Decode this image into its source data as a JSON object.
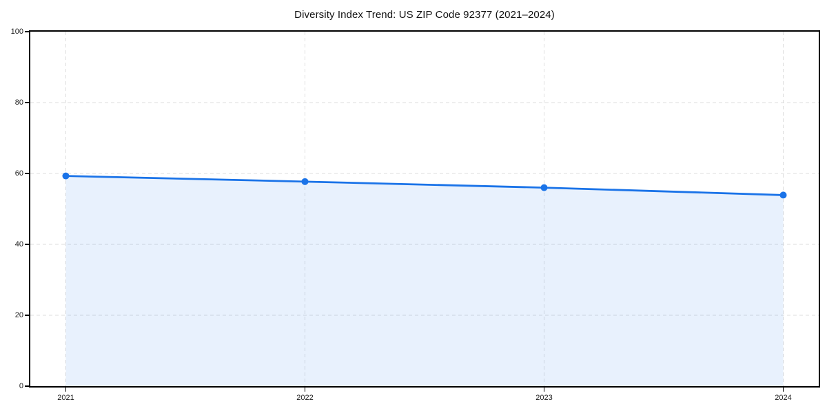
{
  "chart_data": {
    "type": "line",
    "title": "Diversity Index Trend: US ZIP Code 92377 (2021–2024)",
    "categories": [
      "2021",
      "2022",
      "2023",
      "2024"
    ],
    "series": [
      {
        "name": "Diversity Index",
        "values": [
          59.3,
          57.7,
          56.0,
          53.9
        ]
      }
    ],
    "xlabel": "",
    "ylabel": "",
    "ylim": [
      0,
      100
    ],
    "yticks": [
      0,
      20,
      40,
      60,
      80,
      100
    ],
    "grid": "dashed",
    "legend": "none",
    "area_fill": true,
    "x_pad_frac": 0.045,
    "colors": {
      "line": "#1a73e8",
      "marker": "#1a73e8",
      "fill": "rgba(26,115,232,0.10)",
      "grid": "#dedede",
      "axis": "#000000",
      "text": "#1a1a1a",
      "background": "#ffffff"
    }
  }
}
